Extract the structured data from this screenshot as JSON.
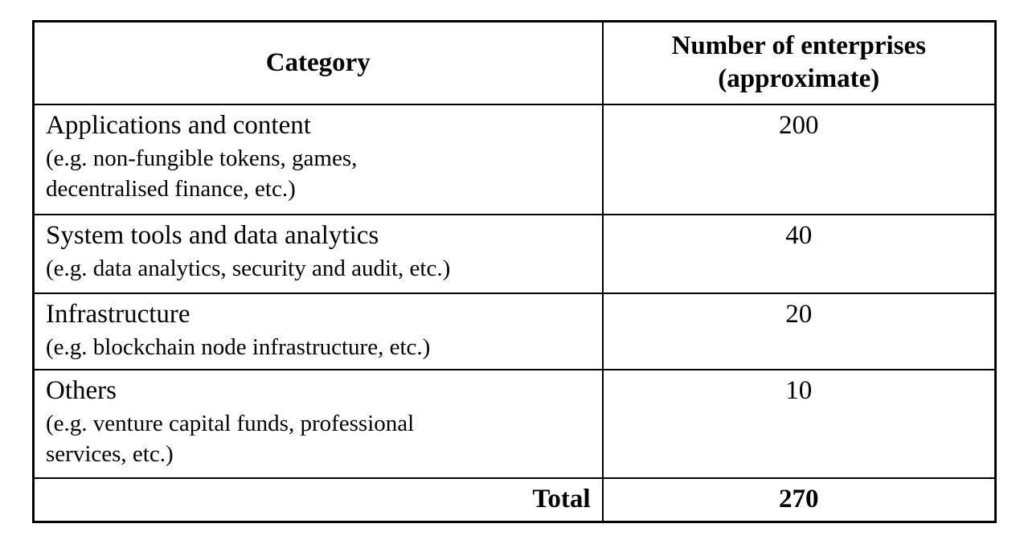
{
  "table": {
    "headers": [
      "Category",
      "Number of enterprises\n(approximate)"
    ],
    "rows": [
      {
        "category": "Applications and content",
        "examples": "(e.g. non-fungible tokens, games,\ndecentralised finance, etc.)",
        "count": "200"
      },
      {
        "category": "System tools and data analytics",
        "examples": "(e.g. data analytics, security and audit, etc.)",
        "count": "40"
      },
      {
        "category": "Infrastructure",
        "examples": "(e.g. blockchain node infrastructure, etc.)",
        "count": "20"
      },
      {
        "category": "Others",
        "examples": "(e.g. venture capital funds, professional\nservices, etc.)",
        "count": "10"
      }
    ],
    "total_label": "Total",
    "total_value": "270"
  },
  "colors": {
    "border": "#000000",
    "text": "#000000",
    "background": "#ffffff"
  },
  "chart_data": {
    "type": "table",
    "columns": [
      "Category",
      "Number of enterprises (approximate)"
    ],
    "rows": [
      {
        "category": "Applications and content",
        "examples": "non-fungible tokens, games, decentralised finance, etc.",
        "enterprises": 200
      },
      {
        "category": "System tools and data analytics",
        "examples": "data analytics, security and audit, etc.",
        "enterprises": 40
      },
      {
        "category": "Infrastructure",
        "examples": "blockchain node infrastructure, etc.",
        "enterprises": 20
      },
      {
        "category": "Others",
        "examples": "venture capital funds, professional services, etc.",
        "enterprises": 10
      }
    ],
    "total_label": "Total",
    "total_enterprises": 270
  }
}
